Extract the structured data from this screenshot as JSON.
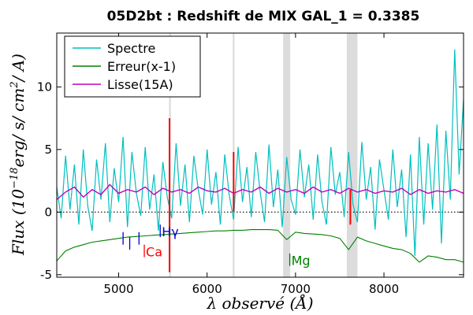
{
  "chart_data": {
    "type": "line",
    "title": "05D2bt : Redshift de MIX GAL_1 = 0.3385",
    "xlabel": "λ observé (Å)",
    "ylabel": "Flux (10^−18 erg/ s/ cm²/ A)",
    "ylabel_parts": {
      "main": "Flux (10",
      "exp": "−18",
      "rest": "erg/ s/ cm",
      "exp2": "2",
      "tail": "/ A)"
    },
    "xlim": [
      4300,
      8900
    ],
    "ylim": [
      -5.2,
      14.3
    ],
    "xticks": [
      5000,
      6000,
      7000,
      8000
    ],
    "xtick_labels": [
      "5000",
      "6000",
      "7000",
      "8000"
    ],
    "yticks": [
      -5,
      0,
      5,
      10
    ],
    "ytick_labels": [
      "-5",
      "0",
      "5",
      "10"
    ],
    "zero_line": "dotted",
    "legend_placement": "top-left",
    "series": [
      {
        "name": "Spectre",
        "color": "#00bfbf",
        "x": [
          4300,
          4350,
          4400,
          4450,
          4500,
          4550,
          4600,
          4650,
          4700,
          4750,
          4800,
          4850,
          4900,
          4950,
          5000,
          5050,
          5100,
          5150,
          5200,
          5250,
          5300,
          5350,
          5400,
          5450,
          5500,
          5550,
          5600,
          5650,
          5700,
          5750,
          5800,
          5850,
          5900,
          5950,
          6000,
          6050,
          6100,
          6150,
          6200,
          6250,
          6300,
          6350,
          6400,
          6450,
          6500,
          6550,
          6600,
          6650,
          6700,
          6750,
          6800,
          6850,
          6900,
          6950,
          7000,
          7050,
          7100,
          7150,
          7200,
          7250,
          7300,
          7350,
          7400,
          7450,
          7500,
          7550,
          7600,
          7650,
          7700,
          7750,
          7800,
          7850,
          7900,
          7950,
          8000,
          8050,
          8100,
          8150,
          8200,
          8250,
          8300,
          8350,
          8400,
          8450,
          8500,
          8550,
          8600,
          8650,
          8700,
          8750,
          8800,
          8850,
          8900
        ],
        "y": [
          2.0,
          -0.5,
          4.5,
          0.2,
          3.8,
          -1.0,
          5.0,
          0.5,
          -1.5,
          4.2,
          1.0,
          5.5,
          -0.8,
          3.5,
          0.8,
          6.0,
          -1.2,
          4.8,
          1.5,
          -0.3,
          5.2,
          0.2,
          3.0,
          -1.5,
          4.0,
          1.2,
          -0.5,
          5.5,
          0.5,
          3.8,
          -0.8,
          4.5,
          1.8,
          -0.2,
          5.0,
          0.6,
          3.2,
          -1.0,
          4.6,
          1.4,
          -0.6,
          5.2,
          0.8,
          3.6,
          -0.4,
          4.8,
          1.6,
          -0.8,
          5.4,
          0.4,
          3.4,
          -1.2,
          4.4,
          1.0,
          -0.2,
          5.0,
          1.2,
          3.8,
          -0.6,
          4.6,
          0.8,
          -1.0,
          5.2,
          1.4,
          3.2,
          -0.4,
          4.8,
          0.6,
          -0.8,
          5.6,
          1.0,
          3.6,
          -1.4,
          4.2,
          1.8,
          -0.6,
          5.0,
          0.4,
          3.4,
          -2.0,
          4.6,
          -3.5,
          6.0,
          -1.0,
          5.5,
          0.2,
          7.0,
          -2.5,
          6.5,
          1.0,
          13.0,
          3.0,
          9.0
        ]
      },
      {
        "name": "Erreur(x-1)",
        "color": "#008000",
        "x": [
          4300,
          4400,
          4500,
          4600,
          4700,
          4800,
          4900,
          5000,
          5100,
          5200,
          5300,
          5400,
          5500,
          5600,
          5700,
          5800,
          5900,
          6000,
          6100,
          6200,
          6300,
          6400,
          6500,
          6600,
          6700,
          6800,
          6900,
          7000,
          7100,
          7200,
          7300,
          7400,
          7500,
          7600,
          7700,
          7800,
          7900,
          8000,
          8100,
          8200,
          8300,
          8400,
          8500,
          8600,
          8700,
          8800,
          8900
        ],
        "y": [
          -3.9,
          -3.1,
          -2.8,
          -2.6,
          -2.4,
          -2.3,
          -2.2,
          -2.1,
          -2.0,
          -1.95,
          -1.9,
          -1.85,
          -1.8,
          -1.75,
          -1.7,
          -1.65,
          -1.6,
          -1.55,
          -1.5,
          -1.5,
          -1.45,
          -1.45,
          -1.4,
          -1.4,
          -1.4,
          -1.45,
          -2.2,
          -1.6,
          -1.7,
          -1.75,
          -1.8,
          -1.9,
          -2.1,
          -3.0,
          -2.0,
          -2.3,
          -2.5,
          -2.7,
          -2.9,
          -3.0,
          -3.3,
          -4.0,
          -3.5,
          -3.6,
          -3.8,
          -3.8,
          -4.0
        ]
      },
      {
        "name": "Lisse(15A)",
        "color": "#bf00bf",
        "x": [
          4300,
          4400,
          4500,
          4600,
          4700,
          4800,
          4900,
          5000,
          5100,
          5200,
          5300,
          5400,
          5500,
          5600,
          5700,
          5800,
          5900,
          6000,
          6100,
          6200,
          6300,
          6400,
          6500,
          6600,
          6700,
          6800,
          6900,
          7000,
          7100,
          7200,
          7300,
          7400,
          7500,
          7600,
          7700,
          7800,
          7900,
          8000,
          8100,
          8200,
          8300,
          8400,
          8500,
          8600,
          8700,
          8800,
          8900
        ],
        "y": [
          1.0,
          1.6,
          2.0,
          1.2,
          1.8,
          1.4,
          2.2,
          1.5,
          1.8,
          1.6,
          2.0,
          1.4,
          1.9,
          1.6,
          1.8,
          1.5,
          2.0,
          1.7,
          1.6,
          1.9,
          1.5,
          1.8,
          1.6,
          2.0,
          1.5,
          1.9,
          1.6,
          1.8,
          1.5,
          2.0,
          1.6,
          1.8,
          1.5,
          1.9,
          1.6,
          1.8,
          1.5,
          1.7,
          1.6,
          1.9,
          1.4,
          1.8,
          1.5,
          1.7,
          1.6,
          1.8,
          1.5
        ]
      }
    ],
    "emission_features": [
      {
        "x": 5575,
        "y_low": -4.8,
        "y_high": 7.5,
        "color": "#ff0000"
      },
      {
        "x": 6300,
        "y_low": 0.0,
        "y_high": 4.8,
        "color": "#ff0000"
      },
      {
        "x": 7620,
        "y_low": -1.0,
        "y_high": 1.8,
        "color": "#ff0000"
      }
    ],
    "shaded_bands": [
      {
        "x0": 5570,
        "x1": 5590
      },
      {
        "x0": 6290,
        "x1": 6310
      },
      {
        "x0": 6860,
        "x1": 6940
      },
      {
        "x0": 7580,
        "x1": 7700
      }
    ],
    "line_markers": [
      {
        "label": "",
        "color": "#0000cc",
        "x": 5050,
        "y_top": -1.6,
        "y_bottom": -2.6
      },
      {
        "label": "",
        "color": "#0000cc",
        "x": 5125,
        "y_top": -2.0,
        "y_bottom": -3.0
      },
      {
        "label": "",
        "color": "#0000cc",
        "x": 5230,
        "y_top": -1.6,
        "y_bottom": -2.6
      },
      {
        "label": "Hγ",
        "color": "#0000cc",
        "x": 5470,
        "y_top": -1.0,
        "y_bottom": -2.0
      },
      {
        "label": "Ca",
        "color": "#ff0000",
        "x": 5290,
        "y_top": -2.6,
        "y_bottom": -3.6
      },
      {
        "label": "Mg",
        "color": "#008000",
        "x": 6935,
        "y_top": -3.3,
        "y_bottom": -4.3
      }
    ]
  }
}
